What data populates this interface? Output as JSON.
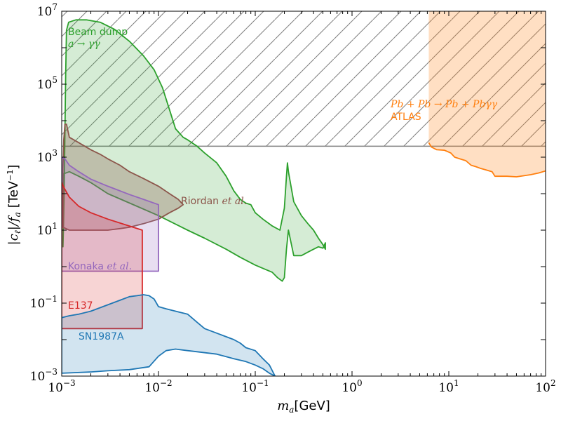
{
  "chart_data": {
    "type": "area",
    "title": "",
    "xlabel_main": "m",
    "xlabel_sub": "a",
    "xlabel_unit": "[GeV]",
    "ylabel": "|c_ℓ|/f_a [TeV⁻¹]",
    "ylabel_main": "|c",
    "ylabel_sub1": "ℓ",
    "ylabel_mid": "|/f",
    "ylabel_sub2": "a",
    "ylabel_unit": "[TeV",
    "ylabel_exp": "−1",
    "ylabel_close": "]",
    "xscale": "log",
    "yscale": "log",
    "xlim": [
      0.001,
      100
    ],
    "ylim": [
      0.001,
      10000000
    ],
    "x_ticks": [
      {
        "base": "10",
        "exp": "−3",
        "value": 0.001
      },
      {
        "base": "10",
        "exp": "−2",
        "value": 0.01
      },
      {
        "base": "10",
        "exp": "−1",
        "value": 0.1
      },
      {
        "base": "10",
        "exp": "0",
        "value": 1
      },
      {
        "base": "10",
        "exp": "1",
        "value": 10
      },
      {
        "base": "10",
        "exp": "2",
        "value": 100
      }
    ],
    "y_ticks": [
      {
        "base": "10",
        "exp": "−3",
        "value": 0.001
      },
      {
        "base": "10",
        "exp": "−1",
        "value": 0.1
      },
      {
        "base": "10",
        "exp": "1",
        "value": 10
      },
      {
        "base": "10",
        "exp": "3",
        "value": 1000
      },
      {
        "base": "10",
        "exp": "5",
        "value": 100000
      },
      {
        "base": "10",
        "exp": "7",
        "value": 10000000
      }
    ],
    "hatched_region": {
      "x": [
        0.001,
        100
      ],
      "y": [
        2000,
        10000000
      ],
      "color": "#808080"
    },
    "annotations": {
      "beam_dump_line1": "Beam dump",
      "beam_dump_line2": "a → γγ",
      "atlas_line1": "Pb + Pb → Pb + Pbγγ",
      "atlas_line2": "ATLAS",
      "riordan_name": "Riordan ",
      "riordan_etal": "et al.",
      "konaka_name": "Konaka ",
      "konaka_etal": "et al.",
      "e137": "E137",
      "sn1987a": "SN1987A"
    },
    "series": [
      {
        "name": "ATLAS",
        "color": "#ff7f0e",
        "fill_to": "top",
        "fill_opacity": 0.25,
        "points": [
          [
            6.2,
            2500
          ],
          [
            6.6,
            1900
          ],
          [
            7.5,
            1600
          ],
          [
            9,
            1550
          ],
          [
            10.5,
            1300
          ],
          [
            11.5,
            1000
          ],
          [
            13,
            900
          ],
          [
            15,
            800
          ],
          [
            17,
            600
          ],
          [
            19,
            550
          ],
          [
            21,
            500
          ],
          [
            24,
            450
          ],
          [
            28,
            400
          ],
          [
            30,
            300
          ],
          [
            40,
            300
          ],
          [
            50,
            290
          ],
          [
            60,
            310
          ],
          [
            70,
            330
          ],
          [
            85,
            370
          ],
          [
            100,
            420
          ]
        ]
      },
      {
        "name": "Beam dump",
        "color": "#2ca02c",
        "fill_to": "closed",
        "fill_opacity": 0.2,
        "points": [
          [
            0.00103,
            3.5
          ],
          [
            0.00104,
            10
          ],
          [
            0.00106,
            100
          ],
          [
            0.00108,
            5000
          ],
          [
            0.0011,
            200000
          ],
          [
            0.00112,
            3000000
          ],
          [
            0.00118,
            5000000
          ],
          [
            0.0014,
            5800000
          ],
          [
            0.0018,
            5800000
          ],
          [
            0.0025,
            5000000
          ],
          [
            0.0035,
            3200000
          ],
          [
            0.005,
            1500000
          ],
          [
            0.007,
            600000
          ],
          [
            0.009,
            250000
          ],
          [
            0.011,
            80000
          ],
          [
            0.013,
            20000
          ],
          [
            0.015,
            6000
          ],
          [
            0.018,
            3500
          ],
          [
            0.02,
            3000
          ],
          [
            0.025,
            2000
          ],
          [
            0.03,
            1300
          ],
          [
            0.04,
            700
          ],
          [
            0.05,
            300
          ],
          [
            0.06,
            120
          ],
          [
            0.07,
            70
          ],
          [
            0.08,
            55
          ],
          [
            0.09,
            50
          ],
          [
            0.1,
            30
          ],
          [
            0.12,
            20
          ],
          [
            0.15,
            13
          ],
          [
            0.18,
            10
          ],
          [
            0.2,
            40
          ],
          [
            0.21,
            300
          ],
          [
            0.215,
            700
          ],
          [
            0.22,
            400
          ],
          [
            0.25,
            60
          ],
          [
            0.3,
            25
          ],
          [
            0.35,
            15
          ],
          [
            0.4,
            10
          ],
          [
            0.45,
            6
          ],
          [
            0.5,
            4
          ],
          [
            0.53,
            3
          ],
          [
            0.53,
            4.5
          ],
          [
            0.5,
            3.2
          ],
          [
            0.45,
            3.5
          ],
          [
            0.4,
            3
          ],
          [
            0.35,
            2.5
          ],
          [
            0.3,
            2
          ],
          [
            0.25,
            2
          ],
          [
            0.22,
            10
          ],
          [
            0.21,
            3
          ],
          [
            0.2,
            0.5
          ],
          [
            0.19,
            0.4
          ],
          [
            0.17,
            0.5
          ],
          [
            0.15,
            0.7
          ],
          [
            0.12,
            0.9
          ],
          [
            0.1,
            1.1
          ],
          [
            0.07,
            1.8
          ],
          [
            0.05,
            3
          ],
          [
            0.03,
            6
          ],
          [
            0.02,
            10
          ],
          [
            0.01,
            25
          ],
          [
            0.006,
            45
          ],
          [
            0.003,
            100
          ],
          [
            0.002,
            200
          ],
          [
            0.0015,
            300
          ],
          [
            0.0012,
            400
          ],
          [
            0.00105,
            350
          ]
        ]
      },
      {
        "name": "Riordan et al.",
        "color": "#8c564b",
        "fill_to": "closed",
        "fill_opacity": 0.3,
        "points": [
          [
            0.00103,
            12
          ],
          [
            0.0012,
            10
          ],
          [
            0.0015,
            10
          ],
          [
            0.002,
            10
          ],
          [
            0.003,
            10
          ],
          [
            0.004,
            11
          ],
          [
            0.005,
            12
          ],
          [
            0.007,
            15
          ],
          [
            0.01,
            20
          ],
          [
            0.013,
            30
          ],
          [
            0.016,
            40
          ],
          [
            0.018,
            50
          ],
          [
            0.016,
            70
          ],
          [
            0.013,
            100
          ],
          [
            0.01,
            160
          ],
          [
            0.007,
            260
          ],
          [
            0.005,
            400
          ],
          [
            0.004,
            600
          ],
          [
            0.003,
            900
          ],
          [
            0.0025,
            1200
          ],
          [
            0.002,
            1600
          ],
          [
            0.0015,
            2500
          ],
          [
            0.0012,
            3500
          ],
          [
            0.00112,
            8000
          ],
          [
            0.00108,
            8000
          ],
          [
            0.00105,
            3000
          ],
          [
            0.00103,
            500
          ],
          [
            0.00103,
            12
          ]
        ]
      },
      {
        "name": "Konaka et al.",
        "color": "#9467bd",
        "fill_to": "closed",
        "fill_opacity": 0.22,
        "points": [
          [
            0.001,
            0.75
          ],
          [
            0.01,
            0.75
          ],
          [
            0.01,
            50
          ],
          [
            0.007,
            70
          ],
          [
            0.005,
            95
          ],
          [
            0.003,
            160
          ],
          [
            0.002,
            250
          ],
          [
            0.0015,
            400
          ],
          [
            0.0012,
            600
          ],
          [
            0.00108,
            900
          ],
          [
            0.001,
            1000
          ],
          [
            0.001,
            0.75
          ]
        ]
      },
      {
        "name": "E137",
        "color": "#d62728",
        "fill_to": "closed",
        "fill_opacity": 0.2,
        "points": [
          [
            0.001,
            0.02
          ],
          [
            0.0068,
            0.02
          ],
          [
            0.0068,
            10
          ],
          [
            0.005,
            13
          ],
          [
            0.003,
            20
          ],
          [
            0.002,
            30
          ],
          [
            0.0015,
            45
          ],
          [
            0.0012,
            80
          ],
          [
            0.00105,
            150
          ],
          [
            0.001,
            200
          ],
          [
            0.001,
            0.02
          ]
        ]
      },
      {
        "name": "SN1987A",
        "color": "#1f77b4",
        "fill_to": "closed",
        "fill_opacity": 0.2,
        "points": [
          [
            0.001,
            0.04
          ],
          [
            0.0012,
            0.045
          ],
          [
            0.0015,
            0.05
          ],
          [
            0.002,
            0.06
          ],
          [
            0.003,
            0.09
          ],
          [
            0.004,
            0.12
          ],
          [
            0.005,
            0.15
          ],
          [
            0.006,
            0.16
          ],
          [
            0.007,
            0.17
          ],
          [
            0.008,
            0.16
          ],
          [
            0.009,
            0.13
          ],
          [
            0.01,
            0.08
          ],
          [
            0.012,
            0.07
          ],
          [
            0.015,
            0.06
          ],
          [
            0.02,
            0.05
          ],
          [
            0.025,
            0.03
          ],
          [
            0.03,
            0.02
          ],
          [
            0.04,
            0.015
          ],
          [
            0.05,
            0.012
          ],
          [
            0.06,
            0.01
          ],
          [
            0.07,
            0.008
          ],
          [
            0.08,
            0.006
          ],
          [
            0.1,
            0.005
          ],
          [
            0.12,
            0.003
          ],
          [
            0.14,
            0.002
          ],
          [
            0.16,
            0.001
          ],
          [
            0.14,
            0.0012
          ],
          [
            0.12,
            0.0016
          ],
          [
            0.1,
            0.002
          ],
          [
            0.08,
            0.0025
          ],
          [
            0.06,
            0.003
          ],
          [
            0.04,
            0.004
          ],
          [
            0.02,
            0.005
          ],
          [
            0.015,
            0.0055
          ],
          [
            0.012,
            0.005
          ],
          [
            0.01,
            0.0035
          ],
          [
            0.008,
            0.0018
          ],
          [
            0.005,
            0.0015
          ],
          [
            0.003,
            0.0014
          ],
          [
            0.002,
            0.0013
          ],
          [
            0.001,
            0.0012
          ],
          [
            0.001,
            0.04
          ]
        ]
      }
    ]
  }
}
